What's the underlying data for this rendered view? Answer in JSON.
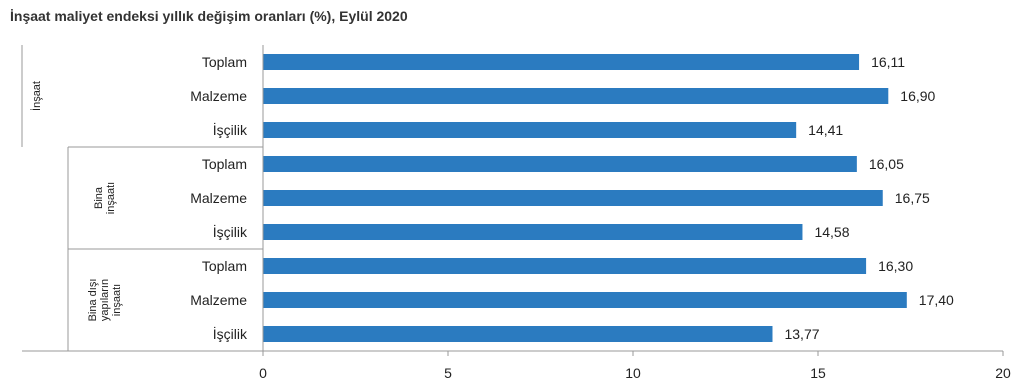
{
  "chart_data": {
    "type": "bar",
    "orientation": "horizontal",
    "title": "İnşaat maliyet endeksi yıllık değişim oranları (%), Eylül 2020",
    "xlim": [
      0,
      20
    ],
    "xticks": [
      0,
      5,
      10,
      15,
      20
    ],
    "bar_color": "#2b7bc0",
    "groups": [
      {
        "label_lines": [
          "İnşaat"
        ],
        "categories": [
          "Toplam",
          "Malzeme",
          "İşçilik"
        ],
        "values": [
          16.11,
          16.9,
          14.41
        ],
        "value_labels": [
          "16,11",
          "16,90",
          "14,41"
        ]
      },
      {
        "label_lines": [
          "Bina",
          "inşaatı"
        ],
        "categories": [
          "Toplam",
          "Malzeme",
          "İşçilik"
        ],
        "values": [
          16.05,
          16.75,
          14.58
        ],
        "value_labels": [
          "16,05",
          "16,75",
          "14,58"
        ]
      },
      {
        "label_lines": [
          "Bina dışı",
          "yapıların",
          "inşaatı"
        ],
        "categories": [
          "Toplam",
          "Malzeme",
          "İşçilik"
        ],
        "values": [
          16.3,
          17.4,
          13.77
        ],
        "value_labels": [
          "16,30",
          "17,40",
          "13,77"
        ]
      }
    ]
  }
}
